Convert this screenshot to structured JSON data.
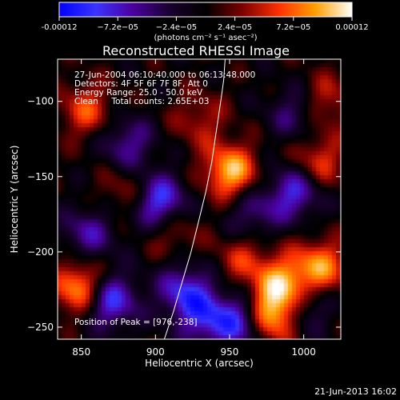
{
  "chart_data": {
    "type": "heatmap",
    "title": "Reconstructed RHESSI Image",
    "xlabel": "Heliocentric X (arcsec)",
    "ylabel": "Heliocentric Y (arcsec)",
    "xlim": [
      834,
      1025
    ],
    "ylim": [
      -258,
      -72
    ],
    "x_ticks": [
      850,
      900,
      950,
      1000
    ],
    "x_tick_labels": [
      "850",
      "900",
      "950",
      "1000"
    ],
    "y_ticks": [
      -100,
      -150,
      -200,
      -250
    ],
    "y_tick_labels": [
      "−100",
      "−150",
      "−200",
      "−250"
    ],
    "colorbar": {
      "range": [
        -0.00012,
        0.00012
      ],
      "ticks": [
        -0.00012,
        -7.2e-05,
        -2.4e-05,
        2.4e-05,
        7.2e-05,
        0.00012
      ],
      "tick_labels": [
        "-0.00012",
        "−7.2e−05",
        "−2.4e−05",
        "2.4e−05",
        "7.2e−05",
        "0.00012"
      ],
      "unit_label": "(photons cm⁻² s⁻¹ asec⁻²)",
      "colors": [
        "#0000ff",
        "#3a34ff",
        "#4b00a0",
        "#1a0030",
        "#000000",
        "#7a0000",
        "#ff3000",
        "#ffa000",
        "#ffffff"
      ]
    },
    "annotations": [
      "27-Jun-2004 06:10:40.000 to 06:13:48.000",
      "Detectors: 4F 5F 6F 7F 8F, Att 0",
      "Energy Range: 25.0 - 50.0 keV",
      "Clean     Total counts: 2.65E+03"
    ],
    "peak_label": "Position of Peak = [976,-238]",
    "peak": [
      976,
      -238
    ],
    "limb_curve": [
      [
        906,
        -258
      ],
      [
        912,
        -240
      ],
      [
        918,
        -220
      ],
      [
        924,
        -200
      ],
      [
        929,
        -180
      ],
      [
        934,
        -160
      ],
      [
        938,
        -140
      ],
      [
        941,
        -120
      ],
      [
        944,
        -100
      ],
      [
        946,
        -86
      ],
      [
        947,
        -72
      ]
    ],
    "hot_spots": [
      {
        "x": 951,
        "y": -147,
        "value": 0.0001
      },
      {
        "x": 850,
        "y": -224,
        "value": 0.0001
      },
      {
        "x": 978,
        "y": -242,
        "value": 0.00012
      },
      {
        "x": 1012,
        "y": -210,
        "value": 8e-05
      },
      {
        "x": 854,
        "y": -106,
        "value": 6e-05
      },
      {
        "x": 988,
        "y": -222,
        "value": 9e-05
      },
      {
        "x": 1010,
        "y": -140,
        "value": 6e-05
      },
      {
        "x": 912,
        "y": -186,
        "value": 4e-05
      },
      {
        "x": 960,
        "y": -205,
        "value": 5e-05
      },
      {
        "x": 1015,
        "y": -100,
        "value": 5e-05
      },
      {
        "x": 880,
        "y": -160,
        "value": 4e-05
      },
      {
        "x": 930,
        "y": -112,
        "value": 4e-05
      }
    ],
    "cold_spots": [
      {
        "x": 903,
        "y": -167,
        "value": -0.0001
      },
      {
        "x": 869,
        "y": -232,
        "value": -0.0001
      },
      {
        "x": 960,
        "y": -246,
        "value": -9e-05
      },
      {
        "x": 994,
        "y": -160,
        "value": -8e-05
      },
      {
        "x": 881,
        "y": -128,
        "value": -6e-05
      },
      {
        "x": 920,
        "y": -226,
        "value": -8e-05
      },
      {
        "x": 1000,
        "y": -236,
        "value": -6e-05
      },
      {
        "x": 855,
        "y": -188,
        "value": -6e-05
      },
      {
        "x": 935,
        "y": -245,
        "value": -7e-05
      },
      {
        "x": 995,
        "y": -108,
        "value": -5e-05
      },
      {
        "x": 965,
        "y": -175,
        "value": -5e-05
      }
    ]
  },
  "footer": {
    "date_stamp": "21-Jun-2013 16:02"
  }
}
